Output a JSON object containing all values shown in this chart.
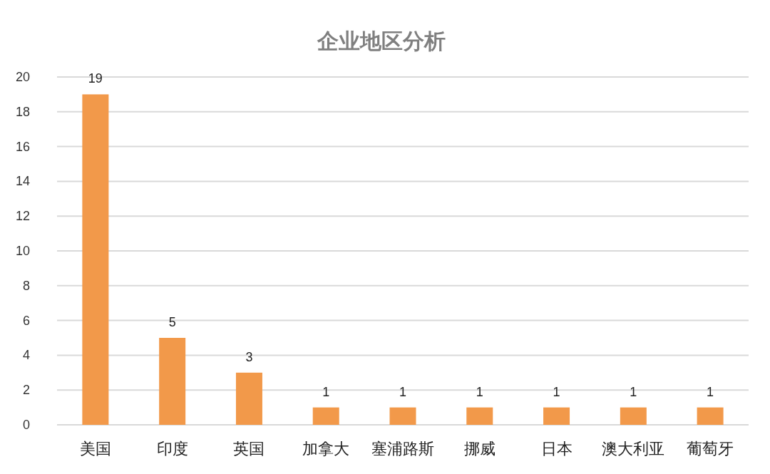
{
  "chart_data": {
    "type": "bar",
    "title": "企业地区分析",
    "categories": [
      "美国",
      "印度",
      "英国",
      "加拿大",
      "塞浦路斯",
      "挪威",
      "日本",
      "澳大利亚",
      "葡萄牙"
    ],
    "values": [
      19,
      5,
      3,
      1,
      1,
      1,
      1,
      1,
      1
    ],
    "color": "#f2994a",
    "ylim": [
      0,
      20
    ],
    "yticks": [
      0,
      2,
      4,
      6,
      8,
      10,
      12,
      14,
      16,
      18,
      20
    ],
    "grid": "y",
    "data_labels": true
  }
}
